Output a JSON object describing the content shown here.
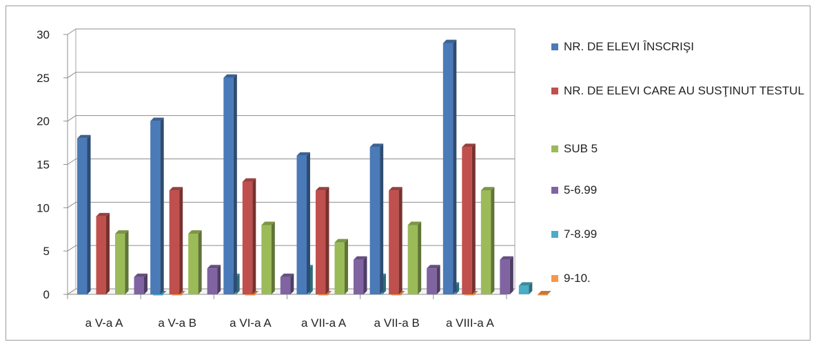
{
  "chart_data": {
    "type": "bar",
    "title": "",
    "xlabel": "",
    "ylabel": "",
    "ylim": [
      0,
      30
    ],
    "yticks": [
      0,
      5,
      10,
      15,
      20,
      25,
      30
    ],
    "grid": true,
    "legend_position": "right",
    "categories": [
      "a V-a A",
      "a V-a B",
      "a VI-a A",
      "a VII-a A",
      "a VII-a B",
      "a VIII-a A"
    ],
    "series": [
      {
        "name": "NR. DE ELEVI ÎNSCRIŞI",
        "color": "#4a7ab8",
        "values": [
          18,
          20,
          25,
          16,
          17,
          29
        ]
      },
      {
        "name": "NR. DE ELEVI CARE AU SUSŢINUT TESTUL",
        "color": "#c0504d",
        "values": [
          9,
          12,
          13,
          12,
          12,
          17
        ]
      },
      {
        "name": "SUB 5",
        "color": "#9bbb59",
        "values": [
          7,
          7,
          8,
          6,
          8,
          12
        ]
      },
      {
        "name": "5-6.99",
        "color": "#8064a2",
        "values": [
          2,
          3,
          2,
          4,
          3,
          4
        ]
      },
      {
        "name": "7-8.99",
        "color": "#4bacc6",
        "values": [
          0,
          2,
          3,
          2,
          1,
          1
        ]
      },
      {
        "name": "9-10.",
        "color": "#f79646",
        "values": [
          0,
          0,
          0,
          0,
          0,
          0
        ]
      }
    ]
  }
}
